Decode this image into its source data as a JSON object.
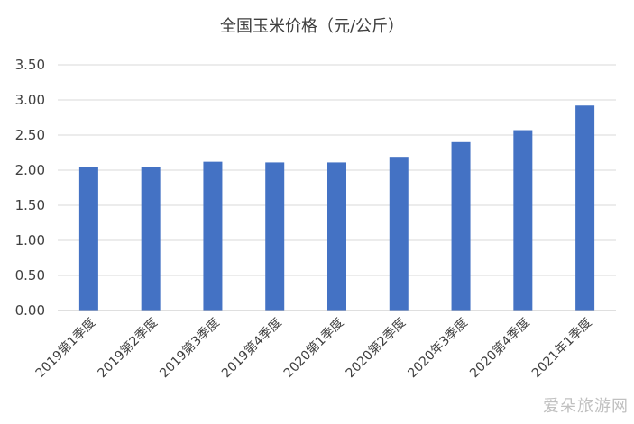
{
  "chart_data": {
    "type": "bar",
    "title": "全国玉米价格（元/公斤）",
    "categories": [
      "2019第1季度",
      "2019第2季度",
      "2019第3季度",
      "2019第4季度",
      "2020第1季度",
      "2020第2季度",
      "2020年3季度",
      "2020第4季度",
      "2021年1季度"
    ],
    "values": [
      2.05,
      2.05,
      2.12,
      2.11,
      2.11,
      2.19,
      2.4,
      2.57,
      2.92
    ],
    "ylim": [
      0,
      3.5
    ],
    "yticks": [
      "0.00",
      "0.50",
      "1.00",
      "1.50",
      "2.00",
      "2.50",
      "3.00",
      "3.50"
    ],
    "ytick_values": [
      0,
      0.5,
      1.0,
      1.5,
      2.0,
      2.5,
      3.0,
      3.5
    ],
    "xlabel": "",
    "ylabel": "",
    "grid": true,
    "bar_color": "#4472c4"
  },
  "watermark": "爱朵旅游网"
}
